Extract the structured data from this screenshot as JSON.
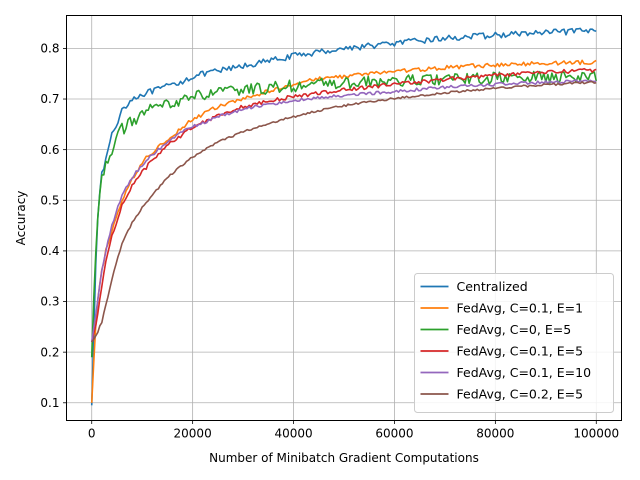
{
  "chart_data": {
    "type": "line",
    "title": "",
    "xlabel": "Number of Minibatch Gradient Computations",
    "ylabel": "Accuracy",
    "xlim": [
      -5000,
      105000
    ],
    "ylim": [
      0.065,
      0.865
    ],
    "xticks": [
      0,
      20000,
      40000,
      60000,
      80000,
      100000
    ],
    "yticks": [
      0.1,
      0.2,
      0.3,
      0.4,
      0.5,
      0.6,
      0.7,
      0.8
    ],
    "grid": true,
    "legend_position": "lower-right",
    "x": [
      0,
      1000,
      2000,
      3000,
      4000,
      5000,
      6000,
      8000,
      10000,
      12000,
      15000,
      18000,
      20000,
      25000,
      30000,
      35000,
      40000,
      45000,
      50000,
      55000,
      60000,
      65000,
      70000,
      75000,
      80000,
      85000,
      90000,
      95000,
      100000
    ],
    "series": [
      {
        "name": "Centralized",
        "color": "#1f77b4",
        "noise": 0.006,
        "values": [
          0.095,
          0.45,
          0.55,
          0.59,
          0.63,
          0.65,
          0.68,
          0.7,
          0.71,
          0.715,
          0.725,
          0.735,
          0.745,
          0.755,
          0.765,
          0.775,
          0.785,
          0.793,
          0.8,
          0.805,
          0.81,
          0.815,
          0.82,
          0.823,
          0.826,
          0.829,
          0.831,
          0.833,
          0.835
        ]
      },
      {
        "name": "FedAvg, C=0.1, E=1",
        "color": "#ff7f0e",
        "noise": 0.004,
        "values": [
          0.1,
          0.29,
          0.36,
          0.41,
          0.44,
          0.47,
          0.5,
          0.54,
          0.575,
          0.595,
          0.62,
          0.645,
          0.66,
          0.685,
          0.7,
          0.715,
          0.73,
          0.74,
          0.745,
          0.75,
          0.755,
          0.758,
          0.762,
          0.765,
          0.767,
          0.769,
          0.771,
          0.772,
          0.773
        ]
      },
      {
        "name": "FedAvg, C=0, E=5",
        "color": "#2ca02c",
        "noise": 0.012,
        "values": [
          0.19,
          0.46,
          0.54,
          0.58,
          0.6,
          0.625,
          0.64,
          0.655,
          0.67,
          0.68,
          0.69,
          0.7,
          0.705,
          0.712,
          0.718,
          0.722,
          0.726,
          0.729,
          0.731,
          0.733,
          0.735,
          0.737,
          0.739,
          0.74,
          0.741,
          0.742,
          0.743,
          0.744,
          0.745
        ]
      },
      {
        "name": "FedAvg, C=0.1, E=5",
        "color": "#d62728",
        "noise": 0.004,
        "values": [
          0.22,
          0.26,
          0.33,
          0.39,
          0.43,
          0.46,
          0.49,
          0.53,
          0.555,
          0.58,
          0.61,
          0.63,
          0.645,
          0.668,
          0.685,
          0.695,
          0.705,
          0.712,
          0.718,
          0.724,
          0.729,
          0.734,
          0.739,
          0.743,
          0.747,
          0.75,
          0.753,
          0.755,
          0.757
        ]
      },
      {
        "name": "FedAvg, C=0.1, E=10",
        "color": "#9467bd",
        "noise": 0.003,
        "values": [
          0.22,
          0.29,
          0.36,
          0.41,
          0.45,
          0.48,
          0.51,
          0.545,
          0.57,
          0.59,
          0.615,
          0.635,
          0.645,
          0.665,
          0.68,
          0.69,
          0.697,
          0.702,
          0.707,
          0.711,
          0.715,
          0.719,
          0.723,
          0.726,
          0.729,
          0.731,
          0.733,
          0.735,
          0.737
        ]
      },
      {
        "name": "FedAvg, C=0.2, E=5",
        "color": "#8c564b",
        "noise": 0.002,
        "values": [
          0.22,
          0.235,
          0.26,
          0.3,
          0.345,
          0.38,
          0.415,
          0.455,
          0.485,
          0.51,
          0.545,
          0.57,
          0.585,
          0.615,
          0.635,
          0.652,
          0.665,
          0.677,
          0.687,
          0.695,
          0.701,
          0.707,
          0.712,
          0.717,
          0.721,
          0.725,
          0.728,
          0.731,
          0.733
        ]
      }
    ]
  }
}
